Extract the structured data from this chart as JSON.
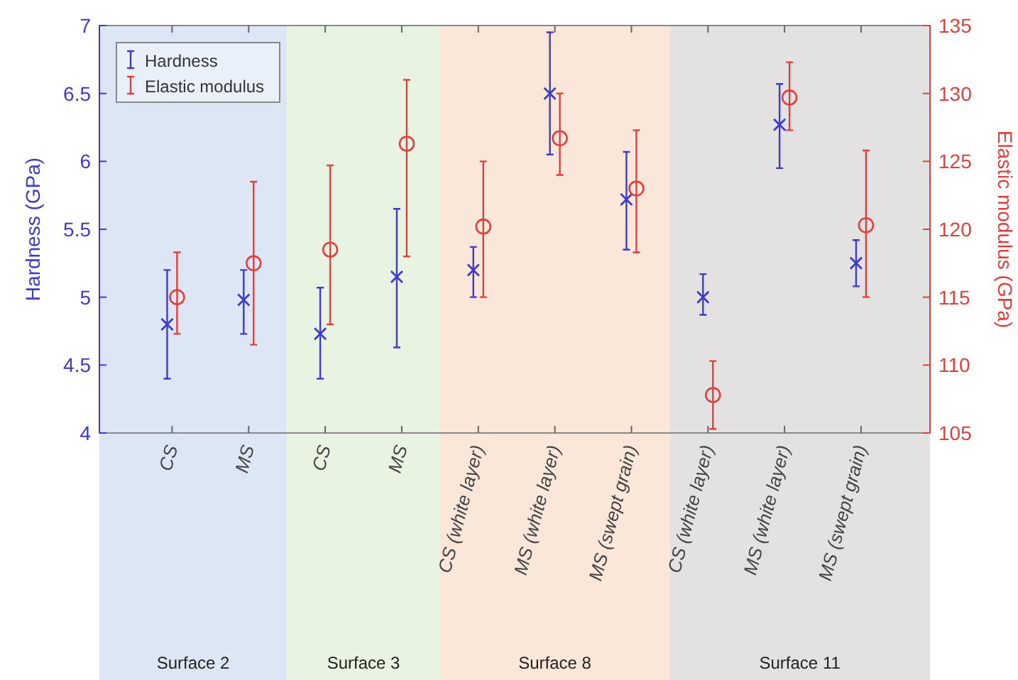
{
  "chart_data": {
    "type": "scatter",
    "ylabel": "Hardness (GPa)",
    "y2label": "Elastic modulus (GPa)",
    "categories": [
      "CS",
      "MS",
      "CS",
      "MS",
      "CS (white layer)",
      "MS (white layer)",
      "MS (swept grain)",
      "CS (white layer)",
      "MS (white layer)",
      "MS (swept grain)"
    ],
    "ylim": [
      4,
      7
    ],
    "yticks": [
      4,
      4.5,
      5,
      5.5,
      6,
      6.5,
      7
    ],
    "y2lim": [
      105,
      135
    ],
    "y2ticks": [
      105,
      110,
      115,
      120,
      125,
      130,
      135
    ],
    "legend": "top left",
    "grid": false,
    "series": [
      {
        "name": "Hardness",
        "color": "#3c3cc8",
        "marker": "cross",
        "values": [
          4.8,
          4.98,
          4.73,
          5.15,
          5.2,
          6.5,
          5.72,
          5.0,
          6.27,
          5.25
        ],
        "errors": [
          [
            4.4,
            5.2
          ],
          [
            4.73,
            5.2
          ],
          [
            4.4,
            5.07
          ],
          [
            4.63,
            5.65
          ],
          [
            5.0,
            5.37
          ],
          [
            6.05,
            6.95
          ],
          [
            5.35,
            6.07
          ],
          [
            4.87,
            5.17
          ],
          [
            5.95,
            6.57
          ],
          [
            5.08,
            5.42
          ]
        ]
      },
      {
        "name": "Elastic modulus",
        "color": "#e0403c",
        "marker": "circle",
        "axis": "y2",
        "values": [
          115,
          117.5,
          118.5,
          126.3,
          120.2,
          126.7,
          123,
          107.8,
          129.7,
          120.3
        ],
        "errors": [
          [
            112.3,
            118.3
          ],
          [
            111.5,
            123.5
          ],
          [
            113,
            124.7
          ],
          [
            118,
            131
          ],
          [
            115,
            125
          ],
          [
            124,
            130
          ],
          [
            118.3,
            127.3
          ],
          [
            105.3,
            110.3
          ],
          [
            127.3,
            132.3
          ],
          [
            115,
            125.8
          ]
        ]
      }
    ],
    "annotations": [
      "Surface 2",
      "Surface 3",
      "Surface 8",
      "Surface 11"
    ]
  }
}
